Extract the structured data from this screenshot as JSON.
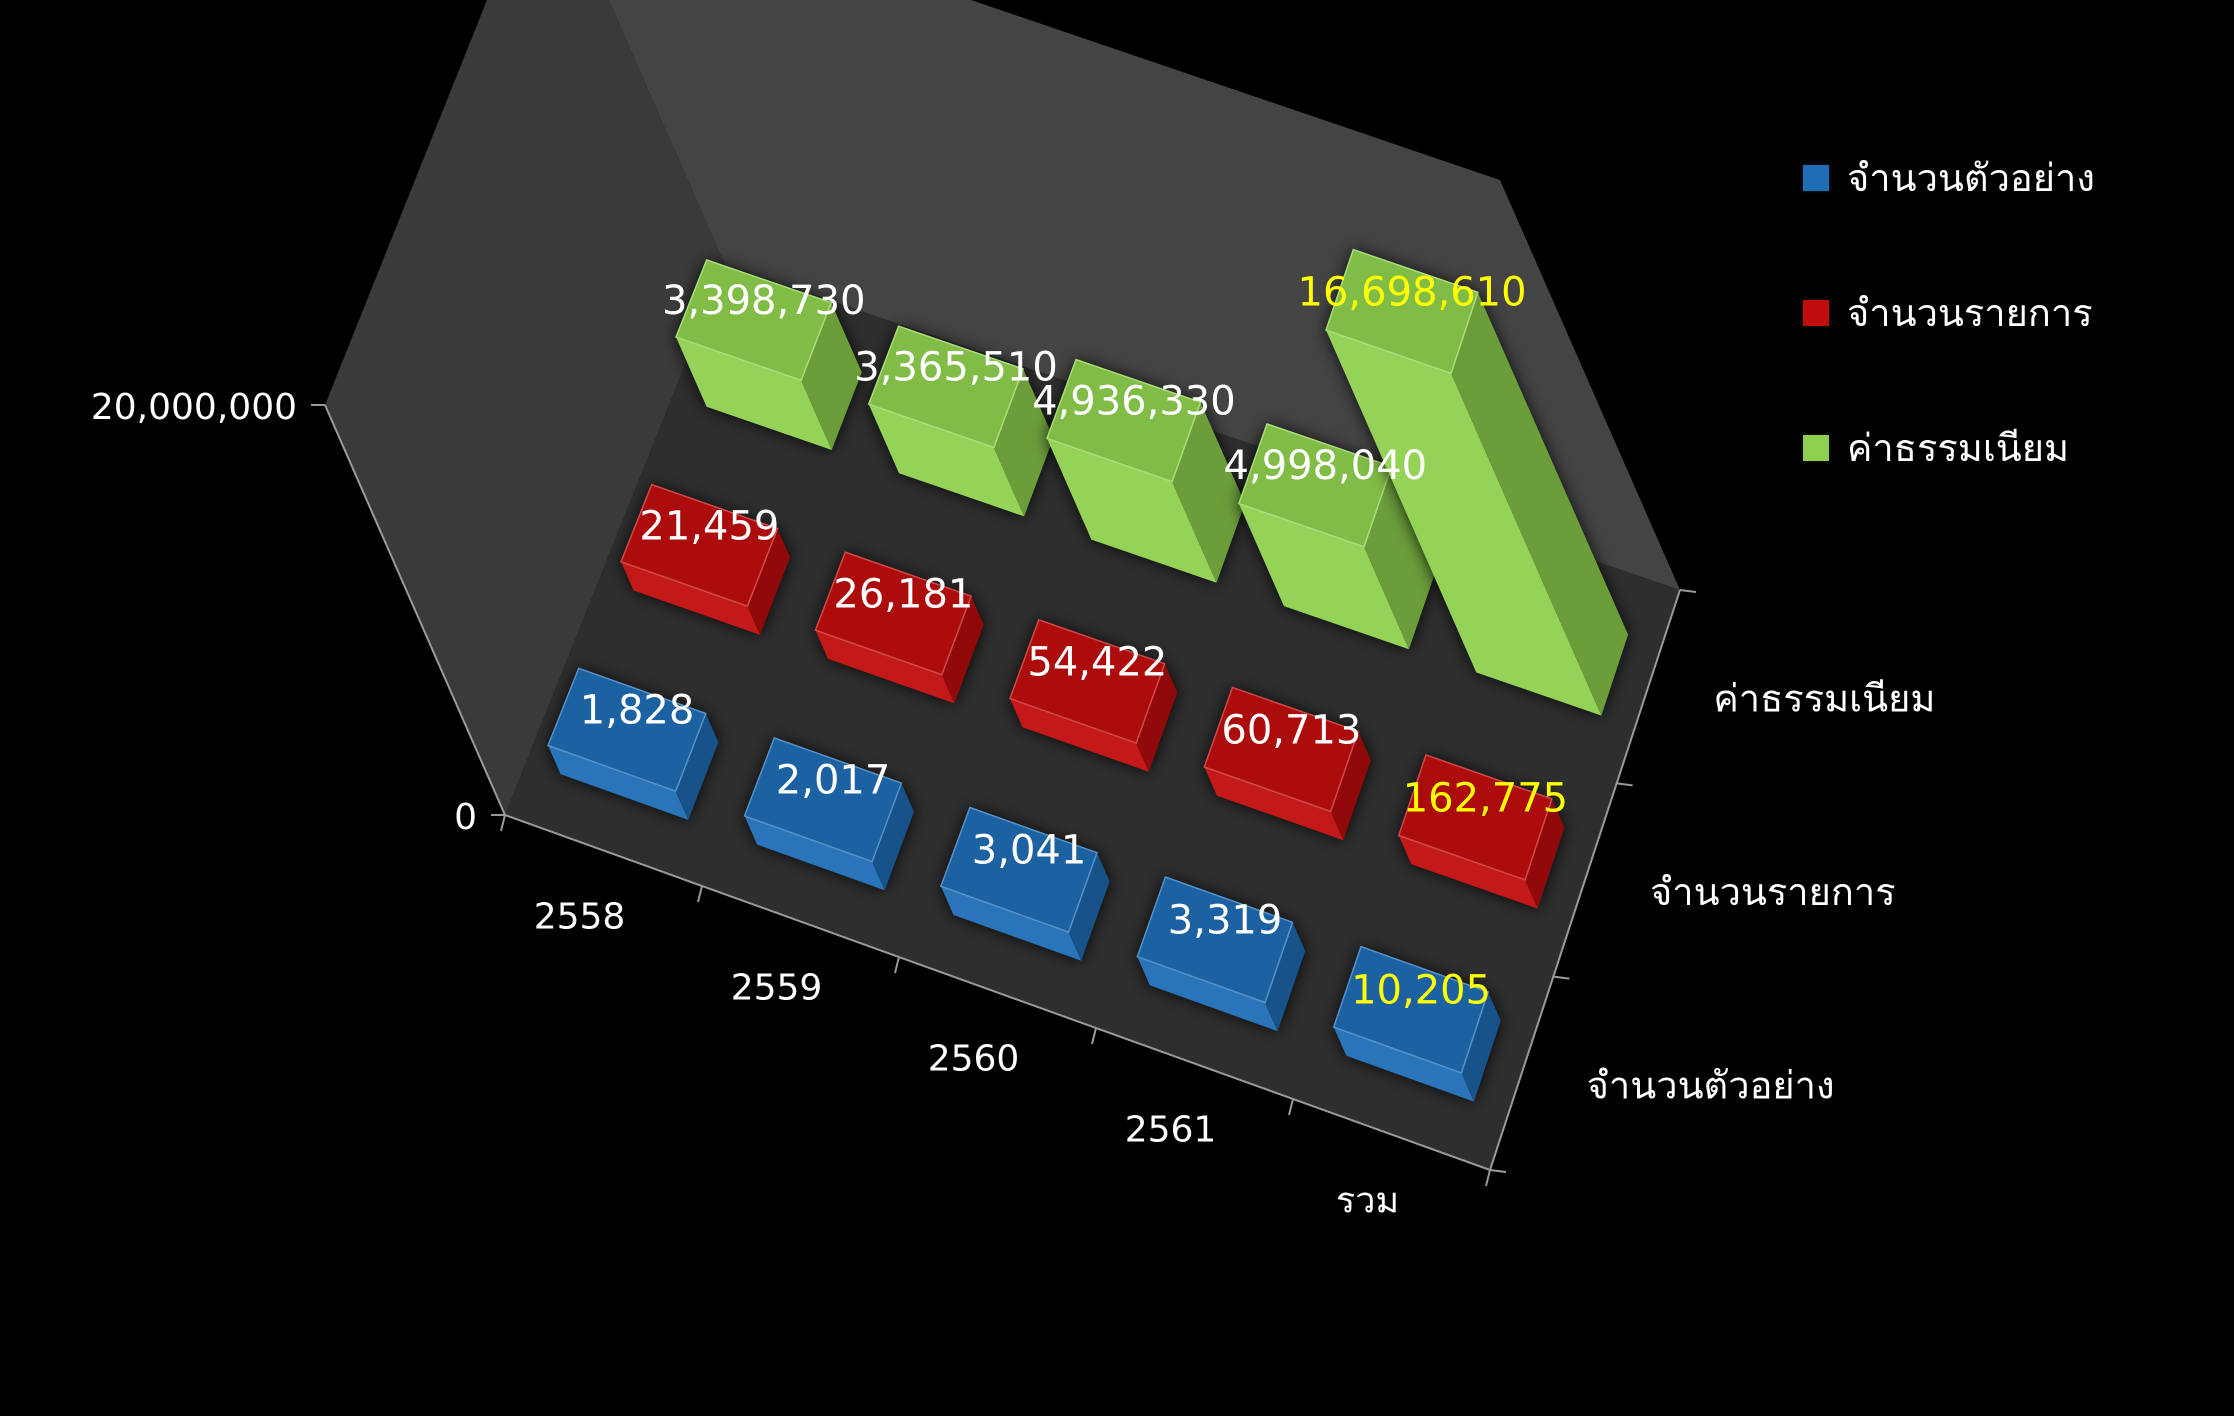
{
  "chart_data": {
    "type": "bar",
    "categories": [
      "2558",
      "2559",
      "2560",
      "2561",
      "รวม"
    ],
    "series": [
      {
        "name": "จำนวนตัวอย่าง",
        "color": "#1f6db5",
        "values": [
          1828,
          2017,
          3041,
          3319,
          10205
        ],
        "labels": [
          "1,828",
          "2,017",
          "3,041",
          "3,319",
          "10,205"
        ]
      },
      {
        "name": "จำนวนรายการ",
        "color": "#c00d0d",
        "values": [
          21459,
          26181,
          54422,
          60713,
          162775
        ],
        "labels": [
          "21,459",
          "26,181",
          "54,422",
          "60,713",
          "162,775"
        ]
      },
      {
        "name": "ค่าธรรมเนียม",
        "color": "#8fd14f",
        "values": [
          3398730,
          3365510,
          4936330,
          4998040,
          16698610
        ],
        "labels": [
          "3,398,730",
          "3,365,510",
          "4,936,330",
          "4,998,040",
          "16,698,610"
        ]
      }
    ],
    "ylim": [
      0,
      20000000
    ],
    "y_ticks": [
      "0",
      "20,000,000"
    ],
    "total_label_color": "#ffff00",
    "label_color": "#ffffff",
    "legend_position": "right"
  }
}
